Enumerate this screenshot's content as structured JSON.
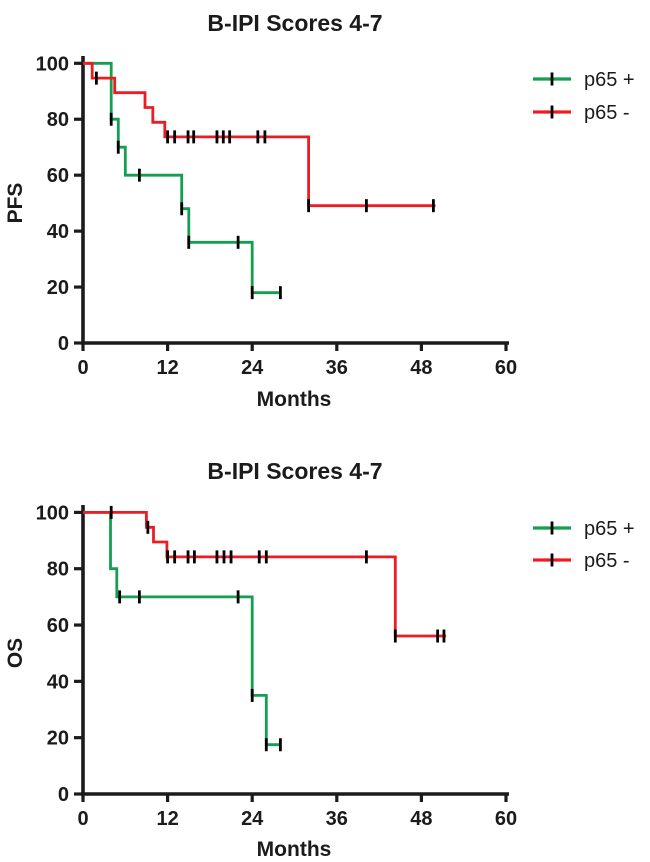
{
  "page": {
    "background": "#ffffff"
  },
  "chart_data": [
    {
      "type": "line",
      "subtype": "kaplan-meier-step",
      "title": "B-IPI Scores 4-7",
      "xlabel": "Months",
      "ylabel": "PFS",
      "xlim": [
        0,
        60
      ],
      "ylim": [
        0,
        100
      ],
      "xticks": [
        0,
        12,
        24,
        36,
        48,
        60
      ],
      "yticks": [
        0,
        20,
        40,
        60,
        80,
        100
      ],
      "grid": false,
      "legend_position": "top-right",
      "axis_color": "#1b1b1b",
      "censor_tick_color": "#000000",
      "series": [
        {
          "name": "p65 +",
          "color": "#149E50",
          "steps": [
            [
              0,
              100
            ],
            [
              4,
              100
            ],
            [
              4,
              80
            ],
            [
              5,
              80
            ],
            [
              5,
              70
            ],
            [
              6,
              70
            ],
            [
              6,
              60
            ],
            [
              14,
              60
            ],
            [
              14,
              48
            ],
            [
              15,
              48
            ],
            [
              15,
              36
            ],
            [
              24,
              36
            ],
            [
              24,
              18
            ],
            [
              28,
              18
            ]
          ],
          "censor_ticks": [
            [
              4,
              80
            ],
            [
              5,
              70
            ],
            [
              8,
              60
            ],
            [
              14,
              48
            ],
            [
              15,
              36
            ],
            [
              22,
              36
            ],
            [
              24,
              18
            ],
            [
              28,
              18
            ]
          ]
        },
        {
          "name": "p65 -",
          "color": "#ED1C24",
          "steps": [
            [
              0,
              100
            ],
            [
              1.3,
              100
            ],
            [
              1.3,
              94.7
            ],
            [
              4.5,
              94.7
            ],
            [
              4.5,
              89.5
            ],
            [
              8.8,
              89.5
            ],
            [
              8.8,
              84.2
            ],
            [
              9.9,
              84.2
            ],
            [
              9.9,
              78.9
            ],
            [
              11.6,
              78.9
            ],
            [
              11.6,
              73.7
            ],
            [
              32,
              73.7
            ],
            [
              32,
              49.1
            ],
            [
              50,
              49.1
            ]
          ],
          "censor_ticks": [
            [
              1.9,
              94.7
            ],
            [
              12,
              73.7
            ],
            [
              13,
              73.7
            ],
            [
              14.9,
              73.7
            ],
            [
              15.7,
              73.7
            ],
            [
              19,
              73.7
            ],
            [
              19.9,
              73.7
            ],
            [
              20.8,
              73.7
            ],
            [
              24.8,
              73.7
            ],
            [
              25.8,
              73.7
            ],
            [
              32,
              49.1
            ],
            [
              40.2,
              49.1
            ],
            [
              49.7,
              49.1
            ]
          ]
        }
      ]
    },
    {
      "type": "line",
      "subtype": "kaplan-meier-step",
      "title": "B-IPI Scores 4-7",
      "xlabel": "Months",
      "ylabel": "OS",
      "xlim": [
        0,
        60
      ],
      "ylim": [
        0,
        100
      ],
      "xticks": [
        0,
        12,
        24,
        36,
        48,
        60
      ],
      "yticks": [
        0,
        20,
        40,
        60,
        80,
        100
      ],
      "grid": false,
      "legend_position": "top-right",
      "axis_color": "#1b1b1b",
      "censor_tick_color": "#000000",
      "series": [
        {
          "name": "p65 +",
          "color": "#149E50",
          "steps": [
            [
              0,
              100
            ],
            [
              3.9,
              100
            ],
            [
              3.9,
              80
            ],
            [
              4.8,
              80
            ],
            [
              4.8,
              70
            ],
            [
              24,
              70
            ],
            [
              24,
              35
            ],
            [
              26,
              35
            ],
            [
              26,
              17.5
            ],
            [
              28,
              17.5
            ]
          ],
          "censor_ticks": [
            [
              5.2,
              70
            ],
            [
              8,
              70
            ],
            [
              22,
              70
            ],
            [
              24,
              35
            ],
            [
              26,
              17.5
            ],
            [
              28,
              17.5
            ]
          ]
        },
        {
          "name": "p65 -",
          "color": "#ED1C24",
          "steps": [
            [
              0,
              100
            ],
            [
              9,
              100
            ],
            [
              9,
              94.7
            ],
            [
              10,
              94.7
            ],
            [
              10,
              89.5
            ],
            [
              11.9,
              89.5
            ],
            [
              11.9,
              84.2
            ],
            [
              44.3,
              84.2
            ],
            [
              44.3,
              56.1
            ],
            [
              51.5,
              56.1
            ]
          ],
          "censor_ticks": [
            [
              4,
              100
            ],
            [
              9.2,
              94.7
            ],
            [
              12,
              84.2
            ],
            [
              13,
              84.2
            ],
            [
              14.9,
              84.2
            ],
            [
              15.8,
              84.2
            ],
            [
              19,
              84.2
            ],
            [
              20,
              84.2
            ],
            [
              21,
              84.2
            ],
            [
              25,
              84.2
            ],
            [
              26,
              84.2
            ],
            [
              40.2,
              84.2
            ],
            [
              44.3,
              56.1
            ],
            [
              50.3,
              56.1
            ],
            [
              51.2,
              56.1
            ]
          ]
        }
      ]
    }
  ]
}
